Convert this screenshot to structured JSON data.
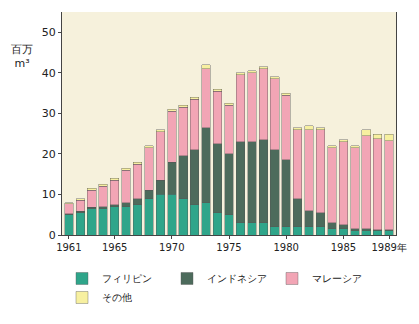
{
  "chart_data": {
    "type": "bar",
    "stacked": true,
    "y_label": "百万\nm³",
    "categories": [
      "1961",
      null,
      null,
      null,
      "1965",
      null,
      null,
      null,
      null,
      "1970",
      null,
      null,
      null,
      null,
      "1975",
      null,
      null,
      null,
      null,
      "1980",
      null,
      null,
      null,
      null,
      "1985",
      null,
      null,
      null,
      "1989年"
    ],
    "series": [
      {
        "name": "フィリピン",
        "color": "#2fa58a",
        "values": [
          5,
          5.5,
          6.5,
          6.5,
          7,
          7,
          7.5,
          9,
          10,
          10,
          9,
          7.5,
          8,
          5.5,
          5,
          3,
          3,
          3,
          2,
          2,
          2,
          2,
          2,
          1.5,
          1.5,
          1,
          1,
          1,
          1
        ]
      },
      {
        "name": "インドネシア",
        "color": "#4d6b5c",
        "values": [
          0.2,
          0.3,
          0.3,
          0.5,
          0.5,
          1,
          1.5,
          2,
          3.5,
          8,
          10.5,
          13.5,
          18.5,
          17,
          15,
          20,
          20,
          20.5,
          19,
          16.5,
          7,
          4,
          3.5,
          1.5,
          1,
          0.5,
          0.5,
          0.3,
          0.3
        ]
      },
      {
        "name": "マレーシア",
        "color": "#f2a5b5",
        "values": [
          2.5,
          2.8,
          4.2,
          5,
          6,
          8,
          8.5,
          10.5,
          12,
          12.5,
          12,
          12.5,
          14.5,
          13,
          12,
          16.5,
          17,
          17.5,
          17.5,
          16,
          17,
          20,
          20.5,
          18.5,
          20.5,
          20,
          23,
          22.5,
          22
        ]
      },
      {
        "name": "その他",
        "color": "#f7f0a0",
        "values": [
          0.3,
          0.4,
          0.5,
          0.5,
          0.5,
          0.5,
          0.5,
          0.5,
          0.5,
          0.5,
          0.5,
          0.5,
          1,
          0.5,
          0.5,
          0.5,
          0.5,
          0.5,
          0.5,
          0.5,
          0.5,
          1,
          0.5,
          0.5,
          0.5,
          0.5,
          1.5,
          1,
          1.5
        ]
      }
    ],
    "ylim": [
      0,
      55
    ],
    "yticks": [
      0,
      10,
      20,
      30,
      40,
      50
    ],
    "grid": false,
    "legend": "bottom"
  }
}
